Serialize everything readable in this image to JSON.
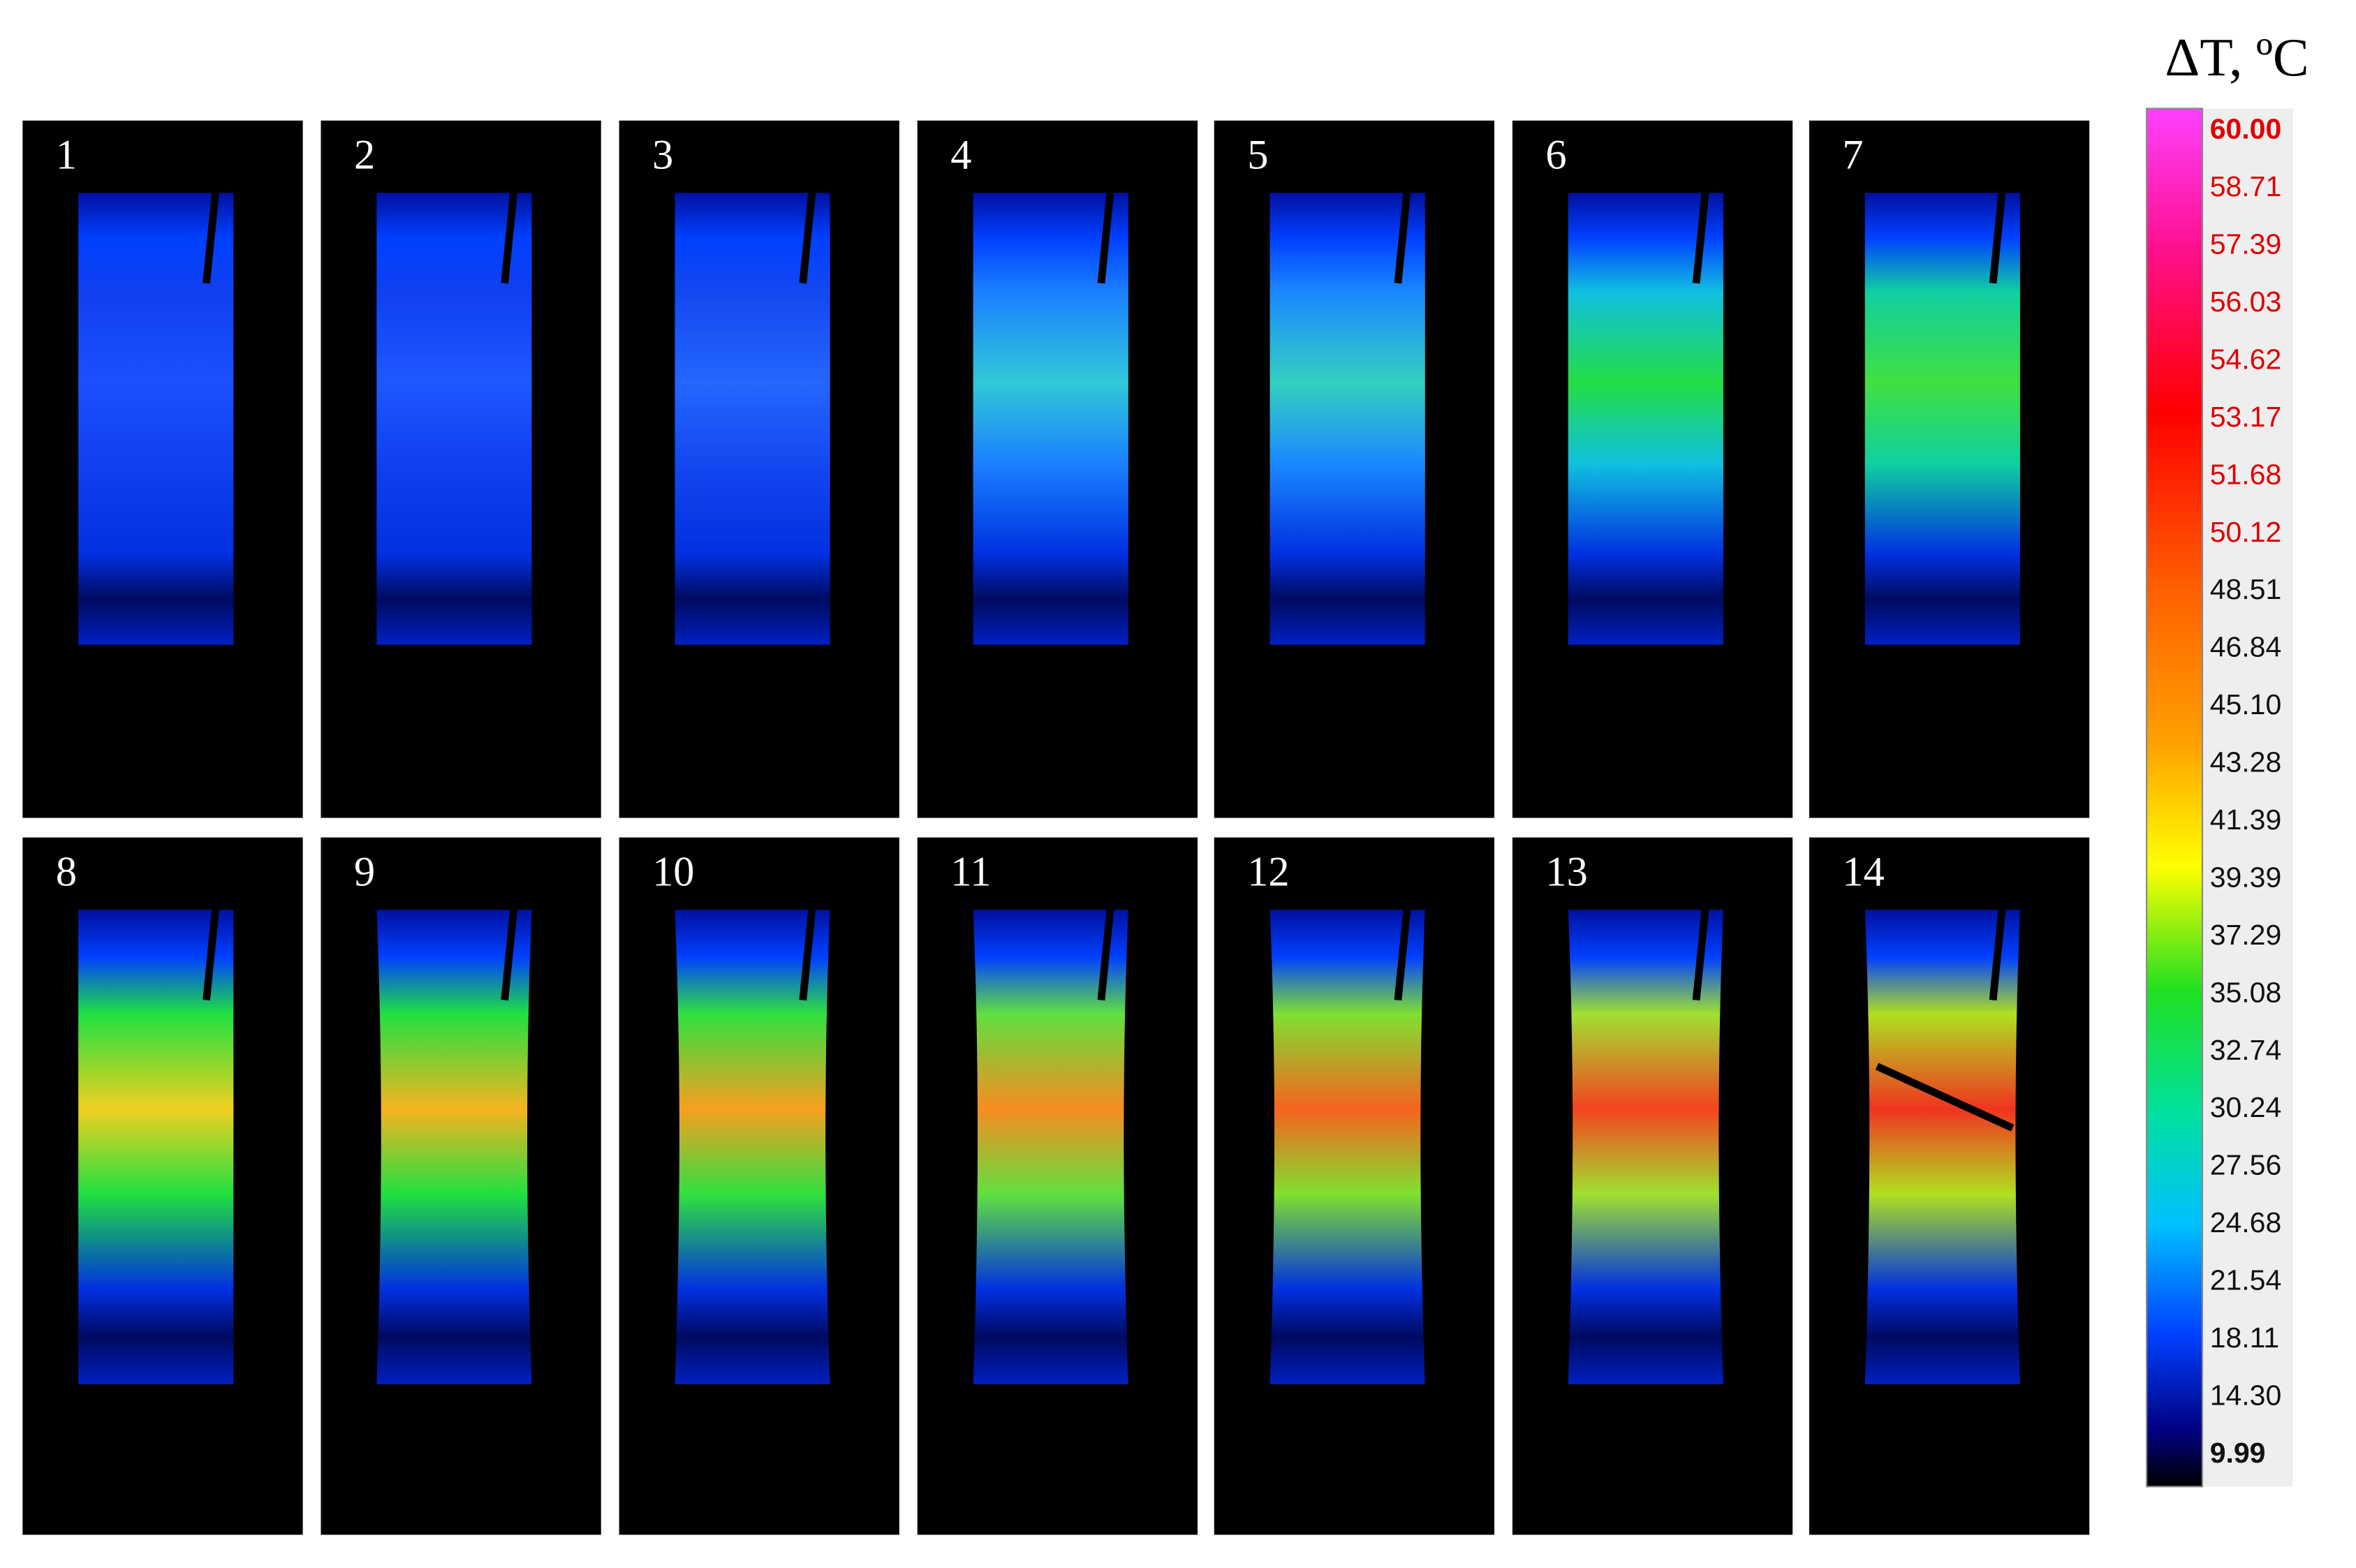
{
  "panels": [
    {
      "label": "1"
    },
    {
      "label": "2"
    },
    {
      "label": "3"
    },
    {
      "label": "4"
    },
    {
      "label": "5"
    },
    {
      "label": "6"
    },
    {
      "label": "7"
    },
    {
      "label": "8"
    },
    {
      "label": "9"
    },
    {
      "label": "10"
    },
    {
      "label": "11"
    },
    {
      "label": "12"
    },
    {
      "label": "13"
    },
    {
      "label": "14"
    }
  ],
  "colorbar": {
    "title": "ΔT, ºC",
    "labels": [
      "60.00",
      "58.71",
      "57.39",
      "56.03",
      "54.62",
      "53.17",
      "51.68",
      "50.12",
      "48.51",
      "46.84",
      "45.10",
      "43.28",
      "41.39",
      "39.39",
      "37.29",
      "35.08",
      "32.74",
      "30.24",
      "27.56",
      "24.68",
      "21.54",
      "18.11",
      "14.30",
      "9.99"
    ]
  }
}
